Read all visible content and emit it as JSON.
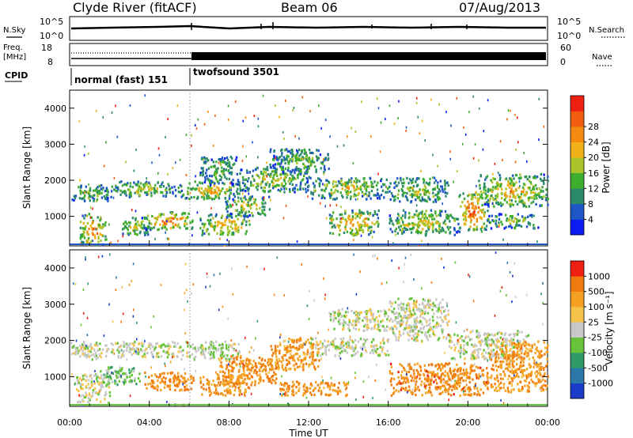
{
  "header": {
    "station": "Clyde River (fitACF)",
    "beam": "Beam 06",
    "date": "07/Aug/2013"
  },
  "status_panels": {
    "nsky_label": "N.Sky",
    "nsearch_label": "N.Search",
    "nsky_ticks": [
      "10^5",
      "10^0"
    ],
    "nsearch_ticks": [
      "10^5",
      "10^0"
    ],
    "freq_label": "Freq.",
    "freq_unit": "[MHz]",
    "freq_ticks": [
      "18",
      "8"
    ],
    "nave_label": "Nave",
    "nave_ticks": [
      "60",
      "0"
    ],
    "cpid_label": "CPID",
    "cpid_segments": [
      {
        "name": "normal (fast) 151",
        "start_hour": 0,
        "end_hour": 6
      },
      {
        "name": "twofsound 3501",
        "start_hour": 6,
        "end_hour": 24
      }
    ]
  },
  "chart_data": [
    {
      "type": "heatmap",
      "panel": "power",
      "ylabel": "Slant Range [km]",
      "xlim": [
        0,
        24
      ],
      "ylim": [
        180,
        4500
      ],
      "yticks": [
        "1000",
        "2000",
        "3000",
        "4000"
      ],
      "colorbar": {
        "label": "Power [dB]",
        "ticks": [
          "4",
          "8",
          "12",
          "16",
          "20",
          "24",
          "28"
        ],
        "colors": [
          "#0b1cf2",
          "#1f56c6",
          "#2a8a6a",
          "#3dad2e",
          "#a9c42a",
          "#f2b118",
          "#f58a10",
          "#f25c0f",
          "#ee2010"
        ]
      },
      "bands": [
        {
          "x": [
            0.0,
            2.0
          ],
          "y": [
            1450,
            1900
          ],
          "level": 0.5
        },
        {
          "x": [
            2.0,
            5.5
          ],
          "y": [
            1550,
            2000
          ],
          "level": 0.55
        },
        {
          "x": [
            0.5,
            1.8
          ],
          "y": [
            200,
            1100
          ],
          "level": 0.9
        },
        {
          "x": [
            2.5,
            4.0
          ],
          "y": [
            500,
            1000
          ],
          "level": 0.6
        },
        {
          "x": [
            3.7,
            6.2
          ],
          "y": [
            650,
            1150
          ],
          "level": 0.85
        },
        {
          "x": [
            5.5,
            8.5
          ],
          "y": [
            1500,
            2000
          ],
          "level": 0.7
        },
        {
          "x": [
            6.5,
            8.5
          ],
          "y": [
            1900,
            2700
          ],
          "level": 0.4
        },
        {
          "x": [
            6.5,
            9.0
          ],
          "y": [
            500,
            1100
          ],
          "level": 0.75
        },
        {
          "x": [
            7.8,
            10.0
          ],
          "y": [
            1000,
            1600
          ],
          "level": 0.6
        },
        {
          "x": [
            8.5,
            12.0
          ],
          "y": [
            1700,
            2400
          ],
          "level": 0.55
        },
        {
          "x": [
            10.0,
            13.0
          ],
          "y": [
            2200,
            2900
          ],
          "level": 0.45
        },
        {
          "x": [
            12.0,
            16.0
          ],
          "y": [
            1500,
            2100
          ],
          "level": 0.6
        },
        {
          "x": [
            13.0,
            15.5
          ],
          "y": [
            500,
            1200
          ],
          "level": 0.8
        },
        {
          "x": [
            16.0,
            19.0
          ],
          "y": [
            1400,
            2100
          ],
          "level": 0.55
        },
        {
          "x": [
            16.0,
            19.5
          ],
          "y": [
            500,
            1200
          ],
          "level": 0.65
        },
        {
          "x": [
            19.5,
            21.0
          ],
          "y": [
            600,
            1700
          ],
          "level": 0.95
        },
        {
          "x": [
            20.5,
            24.0
          ],
          "y": [
            1300,
            2200
          ],
          "level": 0.7
        },
        {
          "x": [
            21.0,
            23.5
          ],
          "y": [
            700,
            1100
          ],
          "level": 0.5
        }
      ]
    },
    {
      "type": "heatmap",
      "panel": "velocity",
      "ylabel": "Slant Range [km]",
      "xlabel": "Time UT",
      "xlim": [
        0,
        24
      ],
      "ylim": [
        180,
        4500
      ],
      "xticks": [
        "00:00",
        "04:00",
        "08:00",
        "12:00",
        "16:00",
        "20:00",
        "00:00"
      ],
      "yticks": [
        "1000",
        "2000",
        "3000",
        "4000"
      ],
      "colorbar": {
        "label": "Velocity [m s⁻¹]",
        "ticks": [
          "1000",
          "500",
          "100",
          "25",
          "-25",
          "-100",
          "-500",
          "-1000"
        ],
        "colors": [
          "#1a3cc8",
          "#2b77a8",
          "#2f9a68",
          "#67c43a",
          "#c8c8c8",
          "#f5c24a",
          "#f5a020",
          "#f07a10",
          "#ee2010"
        ]
      },
      "bands": [
        {
          "x": [
            0.0,
            2.0
          ],
          "y": [
            1500,
            2000
          ],
          "level": 0.5
        },
        {
          "x": [
            2.0,
            5.5
          ],
          "y": [
            1550,
            2000
          ],
          "level": 0.5
        },
        {
          "x": [
            0.3,
            2.0
          ],
          "y": [
            300,
            1100
          ],
          "level": 0.5
        },
        {
          "x": [
            1.5,
            3.5
          ],
          "y": [
            800,
            1300
          ],
          "level": 0.4
        },
        {
          "x": [
            3.7,
            6.2
          ],
          "y": [
            650,
            1150
          ],
          "level": 0.8
        },
        {
          "x": [
            5.5,
            8.5
          ],
          "y": [
            1500,
            2000
          ],
          "level": 0.45
        },
        {
          "x": [
            6.5,
            9.0
          ],
          "y": [
            500,
            1100
          ],
          "level": 0.8
        },
        {
          "x": [
            7.5,
            10.5
          ],
          "y": [
            800,
            1600
          ],
          "level": 0.8
        },
        {
          "x": [
            10.0,
            12.5
          ],
          "y": [
            1200,
            2100
          ],
          "level": 0.78
        },
        {
          "x": [
            12.0,
            16.0
          ],
          "y": [
            1600,
            2100
          ],
          "level": 0.5
        },
        {
          "x": [
            13.0,
            16.0
          ],
          "y": [
            2300,
            2900
          ],
          "level": 0.5
        },
        {
          "x": [
            16.0,
            19.0
          ],
          "y": [
            2000,
            3200
          ],
          "level": 0.5
        },
        {
          "x": [
            10.5,
            14.0
          ],
          "y": [
            500,
            900
          ],
          "level": 0.8
        },
        {
          "x": [
            16.0,
            21.0
          ],
          "y": [
            500,
            1400
          ],
          "level": 0.82
        },
        {
          "x": [
            19.0,
            23.0
          ],
          "y": [
            1500,
            2300
          ],
          "level": 0.5
        },
        {
          "x": [
            21.0,
            24.0
          ],
          "y": [
            600,
            2000
          ],
          "level": 0.78
        }
      ]
    }
  ]
}
